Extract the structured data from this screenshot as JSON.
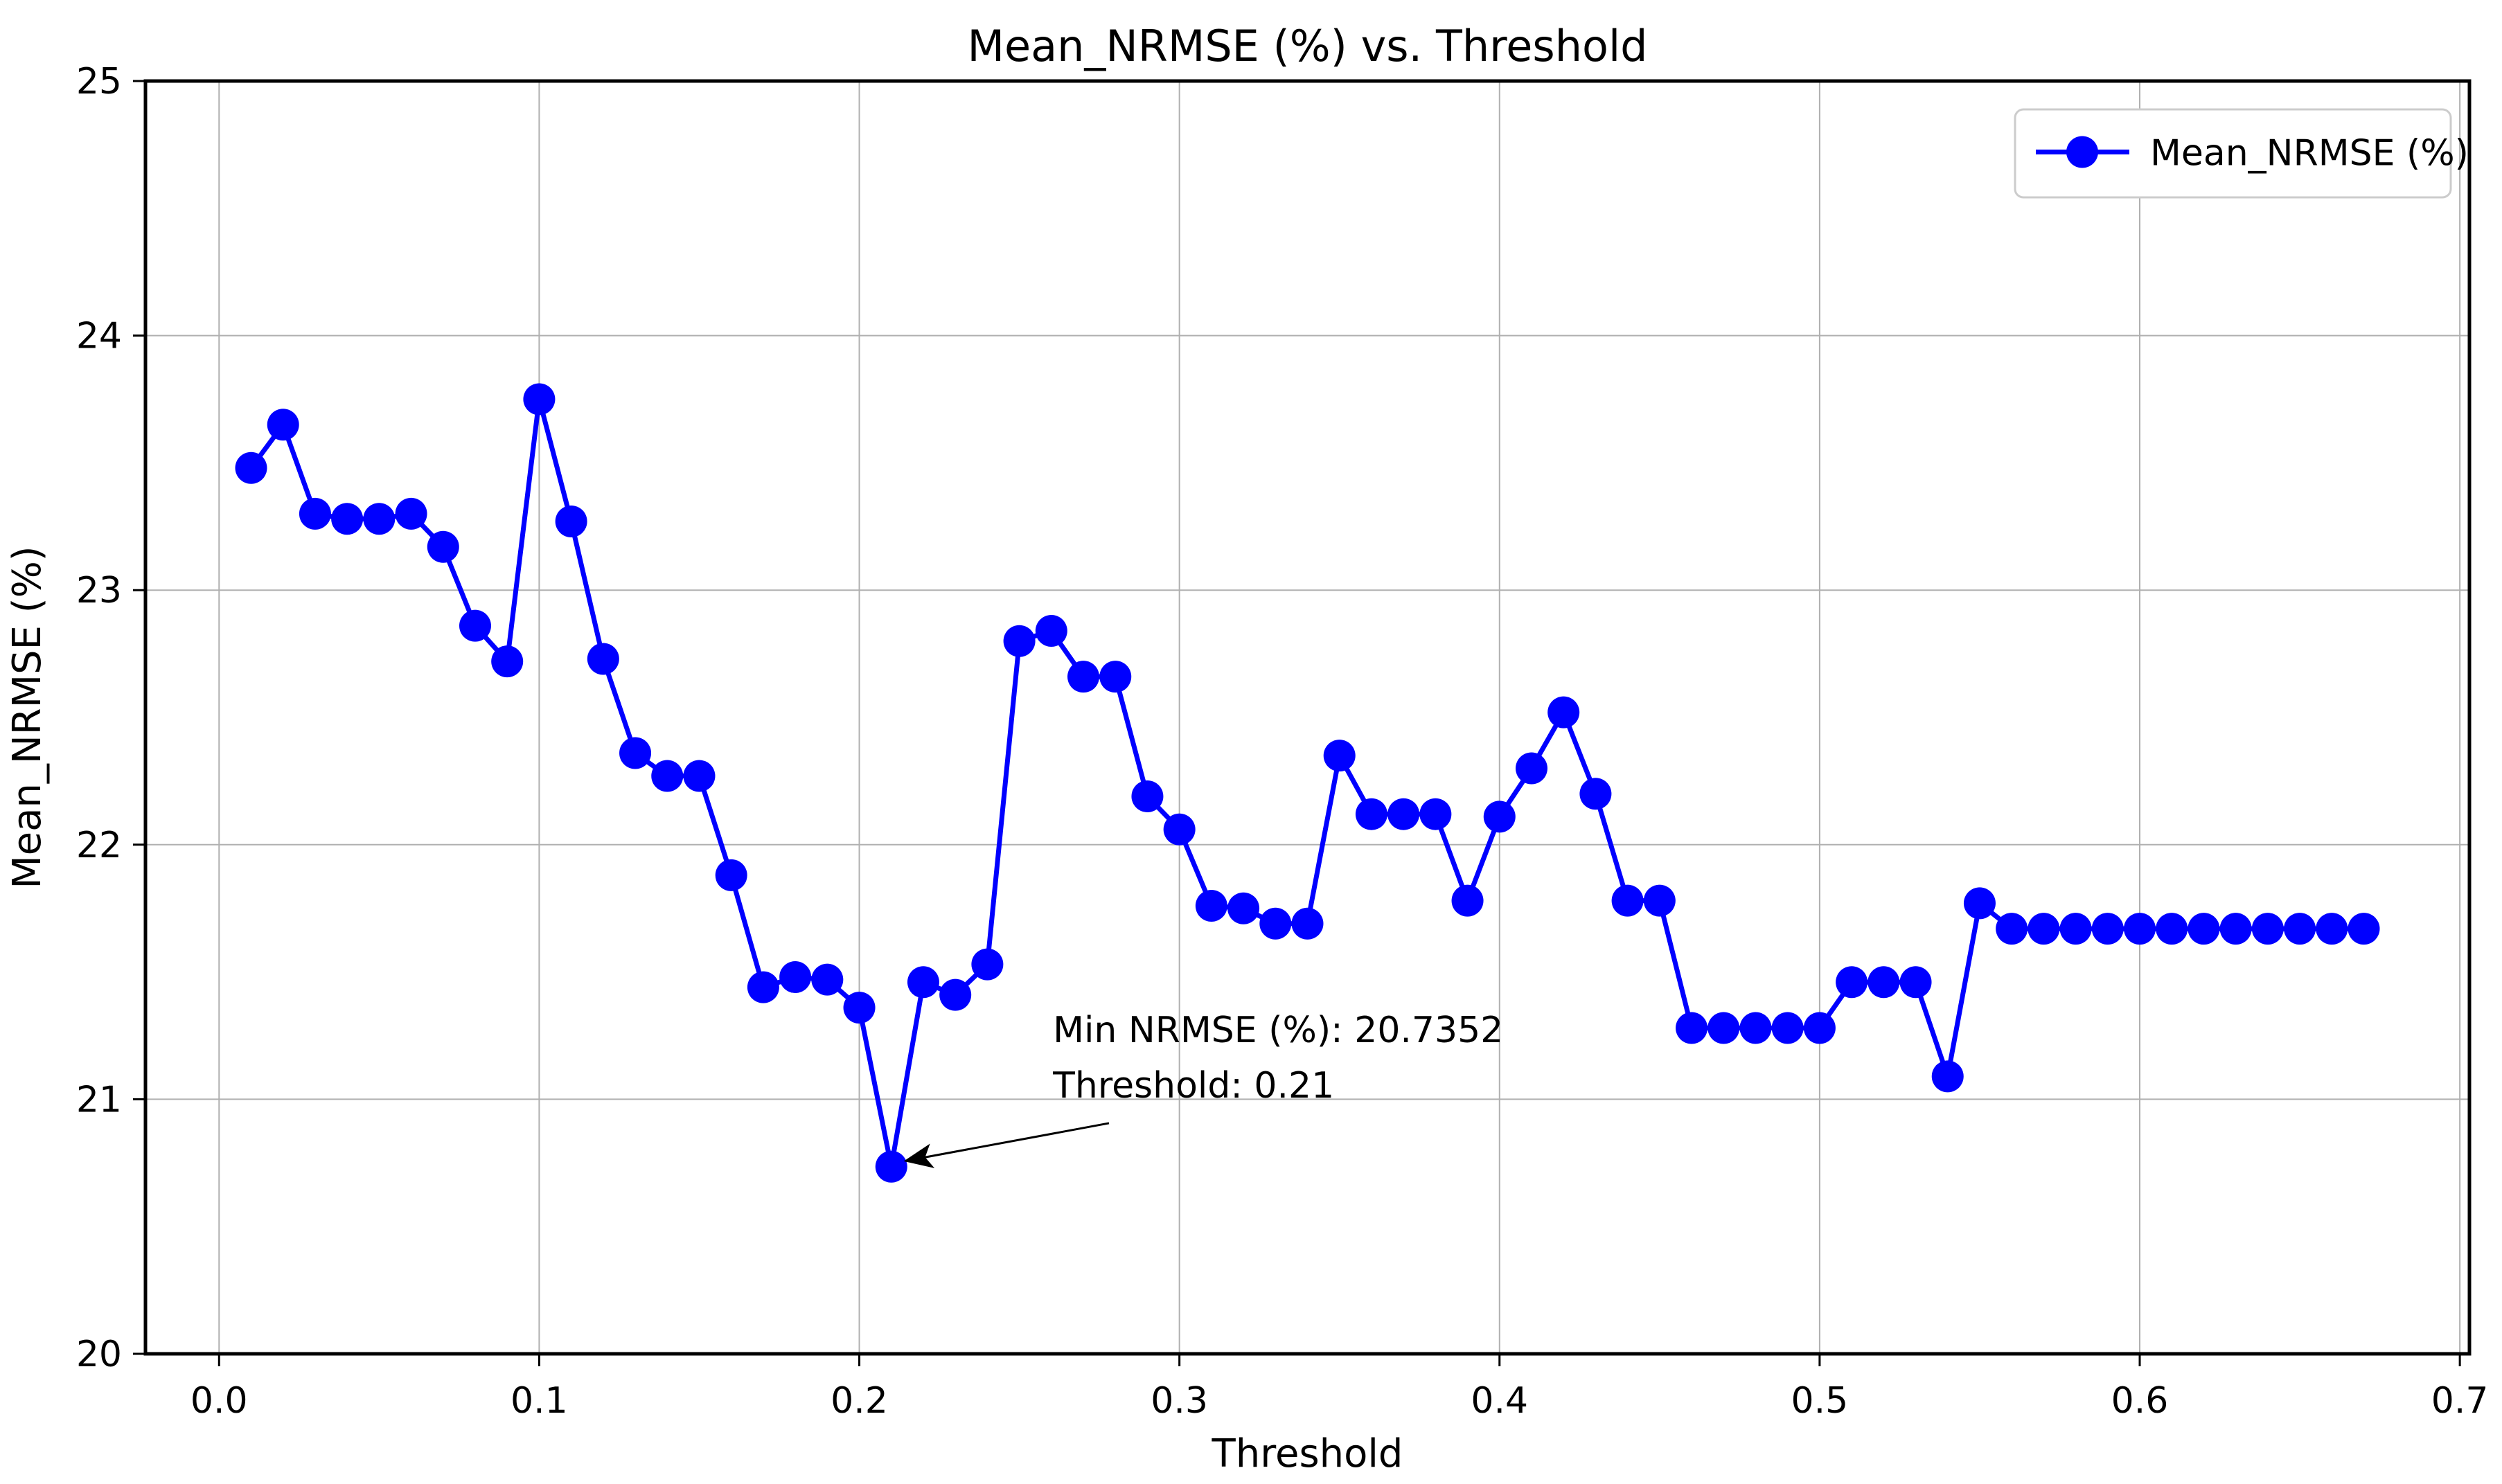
{
  "figure": {
    "title": "Mean_NRMSE (%) vs. Threshold",
    "xlabel": "Threshold",
    "ylabel": "Mean_NRMSE (%)",
    "legend_label": "Mean_NRMSE (%)",
    "colors": {
      "line": "#0000ff",
      "marker": "#0000ff",
      "grid": "#b0b0b0",
      "spine": "#000000",
      "text": "#000000",
      "legend_border": "#cccccc",
      "background": "#ffffff"
    }
  },
  "chart_data": {
    "type": "line",
    "title": "Mean_NRMSE (%) vs. Threshold",
    "xlabel": "Threshold",
    "ylabel": "Mean_NRMSE (%)",
    "legend": [
      "Mean_NRMSE (%)"
    ],
    "legend_position": "upper right",
    "grid": true,
    "marker": "circle",
    "xlim": [
      -0.023,
      0.703
    ],
    "ylim": [
      20,
      25
    ],
    "xticks": [
      0.0,
      0.1,
      0.2,
      0.3,
      0.4,
      0.5,
      0.6,
      0.7
    ],
    "xtick_labels": [
      "0.0",
      "0.1",
      "0.2",
      "0.3",
      "0.4",
      "0.5",
      "0.6",
      "0.7"
    ],
    "yticks": [
      20,
      21,
      22,
      23,
      24,
      25
    ],
    "ytick_labels": [
      "20",
      "21",
      "22",
      "23",
      "24",
      "25"
    ],
    "x": [
      0.01,
      0.02,
      0.03,
      0.04,
      0.05,
      0.06,
      0.07,
      0.08,
      0.09,
      0.1,
      0.11,
      0.12,
      0.13,
      0.14,
      0.15,
      0.16,
      0.17,
      0.18,
      0.19,
      0.2,
      0.21,
      0.22,
      0.23,
      0.24,
      0.25,
      0.26,
      0.27,
      0.28,
      0.29,
      0.3,
      0.31,
      0.32,
      0.33,
      0.34,
      0.35,
      0.36,
      0.37,
      0.38,
      0.39,
      0.4,
      0.41,
      0.42,
      0.43,
      0.44,
      0.45,
      0.46,
      0.47,
      0.48,
      0.49,
      0.5,
      0.51,
      0.52,
      0.53,
      0.54,
      0.55,
      0.56,
      0.57,
      0.58,
      0.59,
      0.6,
      0.61,
      0.62,
      0.63,
      0.64,
      0.65,
      0.66,
      0.67
    ],
    "y": [
      23.48,
      23.65,
      23.3,
      23.28,
      23.28,
      23.3,
      23.17,
      22.86,
      22.72,
      23.75,
      23.27,
      22.73,
      22.36,
      22.27,
      22.27,
      21.88,
      21.44,
      21.48,
      21.47,
      21.36,
      20.7352,
      21.46,
      21.41,
      21.53,
      22.8,
      22.84,
      22.66,
      22.66,
      22.19,
      22.06,
      21.76,
      21.75,
      21.69,
      21.69,
      22.35,
      22.12,
      22.12,
      22.12,
      21.78,
      22.11,
      22.3,
      22.52,
      22.2,
      21.78,
      21.78,
      21.28,
      21.28,
      21.28,
      21.28,
      21.28,
      21.46,
      21.46,
      21.46,
      21.09,
      21.77,
      21.67,
      21.67,
      21.67,
      21.67,
      21.67,
      21.67,
      21.67,
      21.67,
      21.67,
      21.67,
      21.67,
      21.67
    ],
    "min_point": {
      "x": 0.21,
      "y": 20.7352
    },
    "annotation": {
      "line1": "Min NRMSE (%): 20.7352",
      "line2": "Threshold: 0.21",
      "text_xy_data": [
        0.2605,
        21.224
      ],
      "arrow_from_data": [
        0.278,
        20.906
      ],
      "arrow_to_data": [
        0.2145,
        20.758
      ]
    }
  }
}
